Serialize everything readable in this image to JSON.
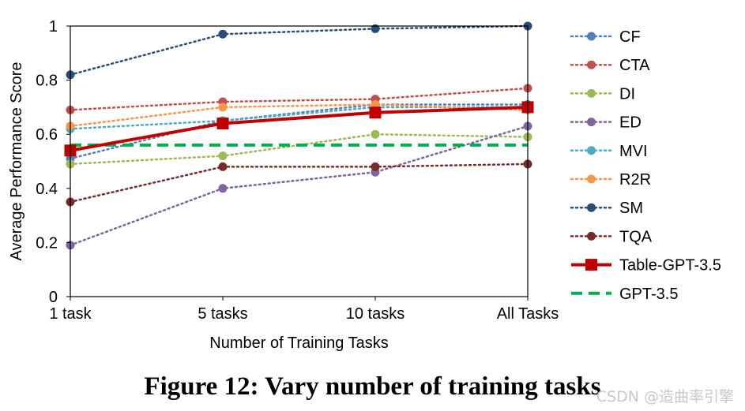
{
  "caption": "Figure 12: Vary number of training tasks",
  "watermark": "CSDN @造曲率引擎",
  "chart_data": {
    "type": "line",
    "categories": [
      "1 task",
      "5 tasks",
      "10 tasks",
      "All Tasks"
    ],
    "xlabel": "Number of Training Tasks",
    "ylabel": "Average Performance Score",
    "ylim": [
      0,
      1
    ],
    "yticks": [
      0,
      0.2,
      0.4,
      0.6,
      0.8,
      1
    ],
    "ytick_labels": [
      "0",
      "0.2",
      "0.4",
      "0.6",
      "0.8",
      "1"
    ],
    "grid": false,
    "legend_position": "right",
    "series": [
      {
        "name": "CF",
        "values": [
          0.51,
          0.65,
          0.71,
          0.71
        ],
        "color": "#4f81bd",
        "style": "dotted",
        "marker": "circle"
      },
      {
        "name": "CTA",
        "values": [
          0.69,
          0.72,
          0.73,
          0.77
        ],
        "color": "#c0504d",
        "style": "dotted",
        "marker": "circle"
      },
      {
        "name": "DI",
        "values": [
          0.49,
          0.52,
          0.6,
          0.59
        ],
        "color": "#9bbb59",
        "style": "dotted",
        "marker": "circle"
      },
      {
        "name": "ED",
        "values": [
          0.19,
          0.4,
          0.46,
          0.63
        ],
        "color": "#8064a2",
        "style": "dotted",
        "marker": "circle"
      },
      {
        "name": "MVI",
        "values": [
          0.62,
          0.65,
          0.7,
          0.7
        ],
        "color": "#4bacc6",
        "style": "dotted",
        "marker": "circle"
      },
      {
        "name": "R2R",
        "values": [
          0.63,
          0.7,
          0.71,
          0.69
        ],
        "color": "#f79646",
        "style": "dotted",
        "marker": "circle"
      },
      {
        "name": "SM",
        "values": [
          0.82,
          0.97,
          0.99,
          1.0
        ],
        "color": "#2c4d75",
        "style": "dotted",
        "marker": "circle"
      },
      {
        "name": "TQA",
        "values": [
          0.35,
          0.48,
          0.48,
          0.49
        ],
        "color": "#772c2a",
        "style": "dotted",
        "marker": "circle"
      },
      {
        "name": "Table-GPT-3.5",
        "values": [
          0.54,
          0.64,
          0.68,
          0.7
        ],
        "color": "#c00000",
        "style": "solid",
        "marker": "square"
      },
      {
        "name": "GPT-3.5",
        "values": [
          0.56,
          0.56,
          0.56,
          0.56
        ],
        "color": "#00b050",
        "style": "dashed",
        "marker": "none"
      }
    ]
  }
}
